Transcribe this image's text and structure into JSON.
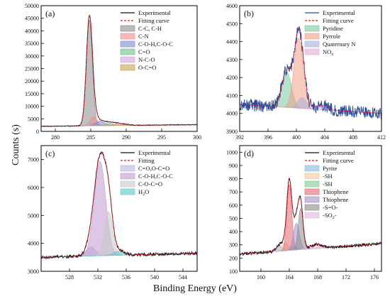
{
  "figure": {
    "xlabel": "Binding Energy (eV)",
    "ylabel": "Counts (s)"
  },
  "chart_data": [
    {
      "type": "area",
      "panel_label": "(a)",
      "xlim": [
        278,
        300
      ],
      "ylim": [
        0,
        50000
      ],
      "xticks": [
        280,
        285,
        290,
        295,
        300
      ],
      "yticks": [
        0,
        5000,
        10000,
        15000,
        20000,
        25000,
        30000,
        35000,
        40000,
        45000,
        50000
      ],
      "series": [
        {
          "name": "Experimental",
          "kind": "line",
          "color": "#111111"
        },
        {
          "name": "Fitting curve",
          "kind": "dashed",
          "color": "#e8141e"
        },
        {
          "name": "C-C, C-H",
          "kind": "fill",
          "color": "#8c8c8c",
          "center": 284.8,
          "height": 42200,
          "fwhm": 1.0
        },
        {
          "name": "C-N",
          "kind": "fill",
          "color": "#f08c8c",
          "center": 285.4,
          "height": 3700,
          "fwhm": 1.1
        },
        {
          "name": "C-O-H,C-O-C",
          "kind": "fill",
          "color": "#7d8cd2",
          "center": 286.3,
          "height": 1800,
          "fwhm": 1.6
        },
        {
          "name": "C=O",
          "kind": "fill",
          "color": "#6cc08c",
          "center": 287.6,
          "height": 900,
          "fwhm": 1.6
        },
        {
          "name": "N-C-O",
          "kind": "fill",
          "color": "#d2a4dc",
          "center": 288.6,
          "height": 600,
          "fwhm": 1.8
        },
        {
          "name": "O-C=O",
          "kind": "fill",
          "color": "#c8a050",
          "center": 289.6,
          "height": 400,
          "fwhm": 2.0
        }
      ],
      "baseline": {
        "left": 2000,
        "right": 2700
      },
      "legend_position": "top-right"
    },
    {
      "type": "area",
      "panel_label": "(b)",
      "xlim": [
        392,
        412
      ],
      "ylim": [
        3900,
        4600
      ],
      "xticks": [
        392,
        396,
        400,
        404,
        408,
        412
      ],
      "yticks": [
        3900,
        4000,
        4100,
        4200,
        4300,
        4400,
        4500,
        4600
      ],
      "series": [
        {
          "name": "Experimental",
          "kind": "line",
          "color": "#2a4a9a"
        },
        {
          "name": "Fitting curve",
          "kind": "dashed",
          "color": "#e8141e"
        },
        {
          "name": "Pyridine",
          "kind": "fill",
          "color": "#7cc8a0",
          "center": 398.6,
          "height": 200,
          "fwhm": 1.6
        },
        {
          "name": "Pyrrole",
          "kind": "fill",
          "color": "#f0a088",
          "center": 400.3,
          "height": 390,
          "fwhm": 1.5
        },
        {
          "name": "Quaternary N",
          "kind": "fill",
          "color": "#a8b0d8",
          "center": 400.8,
          "height": 60,
          "fwhm": 1.4
        },
        {
          "name": "NO",
          "sub": "x",
          "kind": "fill",
          "color": "#e8a8d0",
          "center": 403.6,
          "height": 25,
          "fwhm": 2.0
        }
      ],
      "baseline": {
        "left": 4050,
        "right": 4000
      },
      "legend_position": "top-right"
    },
    {
      "type": "area",
      "panel_label": "(c)",
      "xlim": [
        524,
        546
      ],
      "ylim": [
        3000,
        7500
      ],
      "xticks": [
        528,
        532,
        536,
        540,
        544
      ],
      "yticks": [
        3000,
        4000,
        5000,
        6000,
        7000
      ],
      "series": [
        {
          "name": "Experimental",
          "kind": "line",
          "color": "#111111"
        },
        {
          "name": "Fitting",
          "kind": "dashed",
          "color": "#e8141e"
        },
        {
          "name": "C=O,O-C=O",
          "kind": "fill",
          "color": "#b4b4dc",
          "center": 531.0,
          "height": 320,
          "fwhm": 1.6
        },
        {
          "name": "C-O-H,C-O-C",
          "kind": "fill",
          "color": "#c09ad2",
          "center": 532.3,
          "height": 3380,
          "fwhm": 1.9
        },
        {
          "name": "C-O-C=O",
          "kind": "fill",
          "color": "#c8c8c8",
          "center": 533.5,
          "height": 1560,
          "fwhm": 1.4
        },
        {
          "name": "H",
          "sub": "2",
          "suffix": "O",
          "kind": "fill",
          "color": "#5ac8c8",
          "center": 535.0,
          "height": 150,
          "fwhm": 1.8
        }
      ],
      "baseline": {
        "left": 3500,
        "right": 3650
      },
      "legend_position": "top-right"
    },
    {
      "type": "area",
      "panel_label": "(d)",
      "xlim": [
        157,
        177
      ],
      "ylim": [
        100,
        1050
      ],
      "xticks": [
        160,
        164,
        168,
        172,
        176
      ],
      "yticks": [
        100,
        200,
        300,
        400,
        500,
        600,
        700,
        800,
        900,
        1000
      ],
      "series": [
        {
          "name": "Experimental",
          "kind": "line",
          "color": "#111111"
        },
        {
          "name": "Fitting curve",
          "kind": "dashed",
          "color": "#e8141e"
        },
        {
          "name": "Pyrite",
          "kind": "fill",
          "color": "#88b8e0",
          "center": 162.6,
          "height": 40,
          "fwhm": 1.0
        },
        {
          "name": "-SH",
          "kind": "fill",
          "color": "#f0c8a0",
          "center": 163.4,
          "height": 60,
          "fwhm": 1.0
        },
        {
          "name": "-SH",
          "kind": "fill",
          "color": "#80c890",
          "center": 164.6,
          "height": 30,
          "fwhm": 1.0
        },
        {
          "name": "Thiophene",
          "kind": "fill",
          "color": "#e86870",
          "center": 164.0,
          "height": 500,
          "fwhm": 0.8
        },
        {
          "name": "Thiophene",
          "kind": "fill",
          "color": "#a090c8",
          "center": 165.0,
          "height": 200,
          "fwhm": 1.0
        },
        {
          "name": "-S=O-",
          "kind": "fill",
          "color": "#8c8c8c",
          "center": 165.6,
          "height": 310,
          "fwhm": 0.8
        },
        {
          "name": "-SO",
          "sub": "2",
          "suffix": "-",
          "kind": "fill",
          "color": "#e0b4e0",
          "center": 167.8,
          "height": 30,
          "fwhm": 2.0
        }
      ],
      "baseline": {
        "left": 230,
        "right": 310
      },
      "legend_position": "top-right"
    }
  ]
}
